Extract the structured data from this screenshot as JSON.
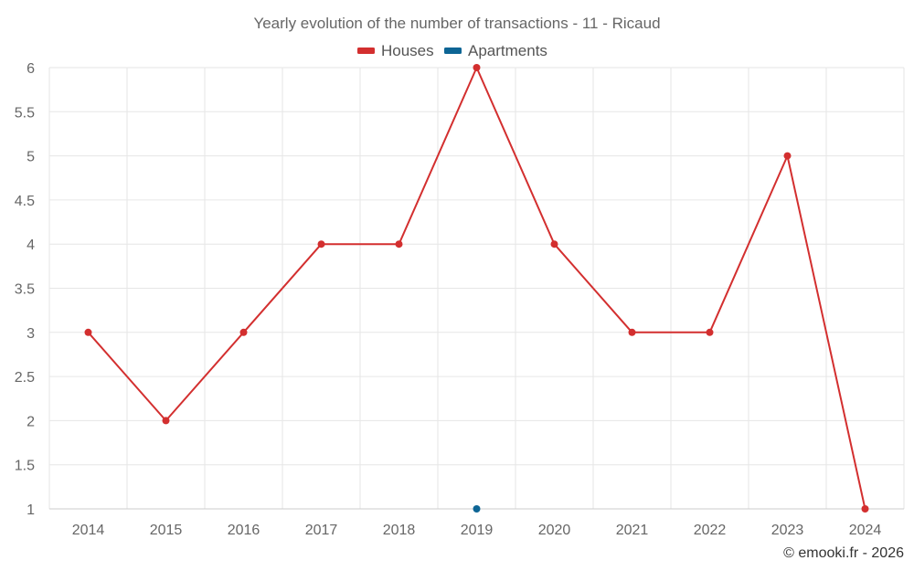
{
  "chart_data": {
    "type": "line",
    "title": "Yearly evolution of the number of transactions - 11 - Ricaud",
    "categories": [
      "2014",
      "2015",
      "2016",
      "2017",
      "2018",
      "2019",
      "2020",
      "2021",
      "2022",
      "2023",
      "2024"
    ],
    "series": [
      {
        "name": "Houses",
        "color": "#d32f2f",
        "values": [
          3,
          2,
          3,
          4,
          4,
          6,
          4,
          3,
          3,
          5,
          1
        ]
      },
      {
        "name": "Apartments",
        "color": "#0d6595",
        "values": [
          null,
          null,
          null,
          null,
          null,
          1,
          null,
          null,
          null,
          null,
          null
        ]
      }
    ],
    "yticks": [
      "1",
      "1.5",
      "2",
      "2.5",
      "3",
      "3.5",
      "4",
      "4.5",
      "5",
      "5.5",
      "6"
    ],
    "ylim": [
      1,
      6
    ],
    "xlabel": "",
    "ylabel": "",
    "grid": true,
    "legend": "top-center"
  },
  "credit": "© emooki.fr - 2026"
}
